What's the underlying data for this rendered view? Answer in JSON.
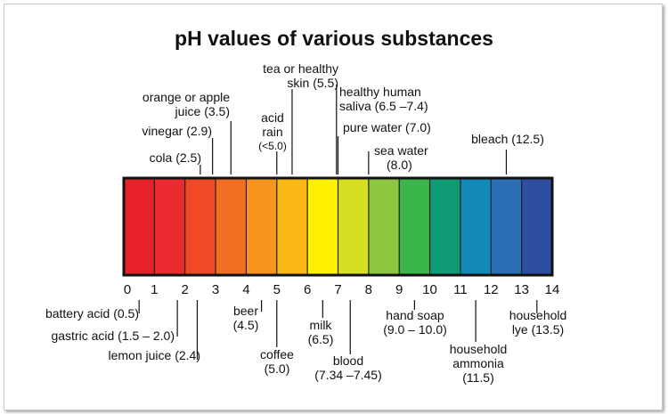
{
  "title": "pH values of various substances",
  "scale": {
    "min": 0,
    "max": 14,
    "ticks": [
      "0",
      "1",
      "2",
      "3",
      "4",
      "5",
      "6",
      "7",
      "8",
      "9",
      "10",
      "11",
      "12",
      "13",
      "14"
    ],
    "colors": [
      "#e62129",
      "#ea2a2e",
      "#ef4a25",
      "#f26f21",
      "#f7941d",
      "#fcb815",
      "#fff200",
      "#d7df23",
      "#8dc63f",
      "#39b54a",
      "#0f9b74",
      "#1289b7",
      "#2a6fb5",
      "#2e4ea1"
    ]
  },
  "substances_above": [
    {
      "id": "cola",
      "lines": [
        "cola (2.5)"
      ],
      "ph": 2.5
    },
    {
      "id": "vinegar",
      "lines": [
        "vinegar (2.9)"
      ],
      "ph": 2.9
    },
    {
      "id": "orange",
      "lines": [
        "orange or apple",
        "juice (3.5)"
      ],
      "ph": 3.5
    },
    {
      "id": "acid_rain",
      "lines": [
        "acid",
        "rain",
        "(<5.0)"
      ],
      "ph": 5.0
    },
    {
      "id": "tea",
      "lines": [
        "tea or healthy",
        "skin (5.5)"
      ],
      "ph": 5.5
    },
    {
      "id": "saliva",
      "lines": [
        "healthy human",
        "saliva (6.5 –7.4)"
      ],
      "ph": 6.95
    },
    {
      "id": "water",
      "lines": [
        "pure water (7.0)"
      ],
      "ph": 7.0
    },
    {
      "id": "sea",
      "lines": [
        "sea water",
        "(8.0)"
      ],
      "ph": 8.0
    },
    {
      "id": "bleach",
      "lines": [
        "bleach (12.5)"
      ],
      "ph": 12.5
    }
  ],
  "substances_below": [
    {
      "id": "battery",
      "lines": [
        "battery acid (0.5)"
      ],
      "ph": 0.5
    },
    {
      "id": "gastric",
      "lines": [
        "gastric acid (1.5 – 2.0)"
      ],
      "ph": 1.75
    },
    {
      "id": "lemon",
      "lines": [
        "lemon juice (2.4)"
      ],
      "ph": 2.4
    },
    {
      "id": "beer",
      "lines": [
        "beer",
        "(4.5)"
      ],
      "ph": 4.5
    },
    {
      "id": "coffee",
      "lines": [
        "coffee",
        "(5.0)"
      ],
      "ph": 5.0
    },
    {
      "id": "milk",
      "lines": [
        "milk",
        "(6.5)"
      ],
      "ph": 6.5
    },
    {
      "id": "blood",
      "lines": [
        "blood",
        "(7.34 –7.45)"
      ],
      "ph": 7.4
    },
    {
      "id": "soap",
      "lines": [
        "hand soap",
        "(9.0 – 10.0)"
      ],
      "ph": 9.5
    },
    {
      "id": "ammonia",
      "lines": [
        "household",
        "ammonia",
        "(11.5)"
      ],
      "ph": 11.5
    },
    {
      "id": "lye",
      "lines": [
        "household",
        "lye (13.5)"
      ],
      "ph": 13.5
    }
  ]
}
